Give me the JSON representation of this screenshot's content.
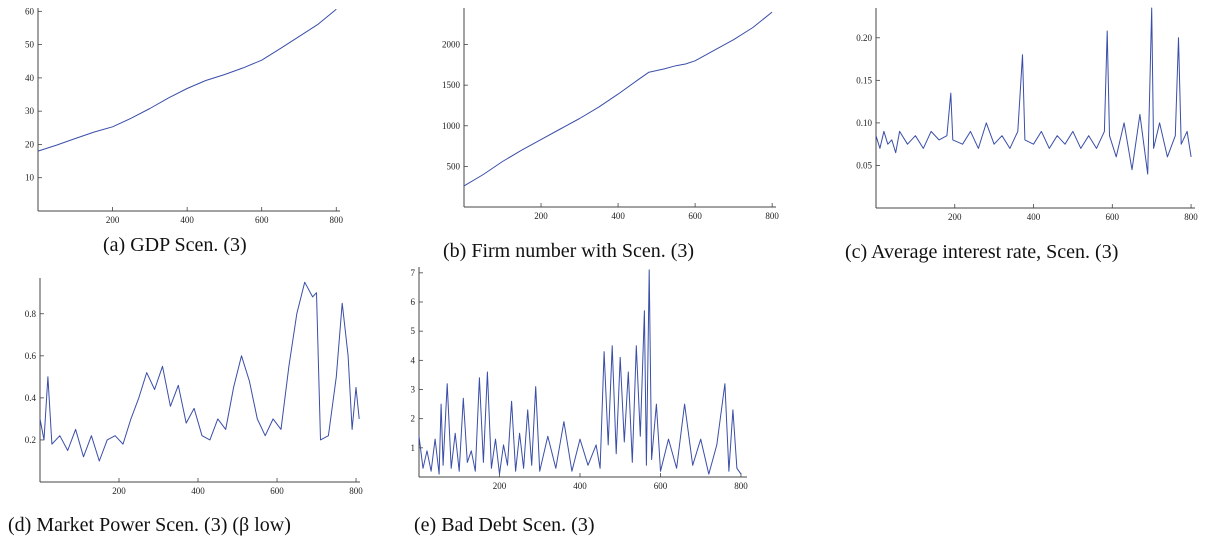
{
  "colors": {
    "line": "#3a4ea8",
    "axis": "#444444"
  },
  "chart_data": [
    {
      "id": "a",
      "type": "line",
      "caption": "(a) GDP Scen. (3)",
      "xlim": [
        0,
        810
      ],
      "ylim": [
        0,
        61
      ],
      "xticks": [
        200,
        400,
        600,
        800
      ],
      "yticks": [
        10,
        20,
        30,
        40,
        50,
        60
      ],
      "series": [
        {
          "values": [
            [
              0,
              18
            ],
            [
              50,
              19.8
            ],
            [
              100,
              21.8
            ],
            [
              150,
              23.7
            ],
            [
              200,
              25.3
            ],
            [
              250,
              27.9
            ],
            [
              300,
              30.8
            ],
            [
              350,
              34
            ],
            [
              400,
              36.8
            ],
            [
              450,
              39.2
            ],
            [
              500,
              41
            ],
            [
              550,
              43
            ],
            [
              600,
              45.3
            ],
            [
              650,
              48.8
            ],
            [
              700,
              52.4
            ],
            [
              750,
              56
            ],
            [
              800,
              60.6
            ]
          ]
        }
      ]
    },
    {
      "id": "b",
      "type": "line",
      "caption": "(b) Firm number with Scen. (3)",
      "xlim": [
        0,
        810
      ],
      "ylim": [
        0,
        2450
      ],
      "xticks": [
        200,
        400,
        600,
        800
      ],
      "yticks": [
        500,
        1000,
        1500,
        2000
      ],
      "series": [
        {
          "values": [
            [
              0,
              260
            ],
            [
              50,
              400
            ],
            [
              100,
              560
            ],
            [
              150,
              700
            ],
            [
              200,
              830
            ],
            [
              250,
              960
            ],
            [
              300,
              1090
            ],
            [
              350,
              1230
            ],
            [
              400,
              1390
            ],
            [
              450,
              1560
            ],
            [
              480,
              1660
            ],
            [
              520,
              1700
            ],
            [
              550,
              1740
            ],
            [
              575,
              1760
            ],
            [
              600,
              1800
            ],
            [
              650,
              1930
            ],
            [
              700,
              2060
            ],
            [
              750,
              2210
            ],
            [
              800,
              2400
            ]
          ]
        }
      ]
    },
    {
      "id": "c",
      "type": "line",
      "caption": "(c) Average interest rate, Scen. (3)",
      "xlim": [
        0,
        810
      ],
      "ylim": [
        0,
        0.235
      ],
      "xticks": [
        200,
        400,
        600,
        800
      ],
      "yticks": [
        0.05,
        0.1,
        0.15,
        0.2
      ],
      "ytick_labels": [
        "0.05",
        "0.10",
        "0.15",
        "0.20"
      ],
      "series": [
        {
          "values": [
            [
              0,
              0.085
            ],
            [
              10,
              0.07
            ],
            [
              20,
              0.09
            ],
            [
              30,
              0.075
            ],
            [
              40,
              0.08
            ],
            [
              50,
              0.065
            ],
            [
              60,
              0.09
            ],
            [
              80,
              0.075
            ],
            [
              100,
              0.085
            ],
            [
              120,
              0.07
            ],
            [
              140,
              0.09
            ],
            [
              160,
              0.08
            ],
            [
              180,
              0.085
            ],
            [
              190,
              0.135
            ],
            [
              195,
              0.08
            ],
            [
              220,
              0.075
            ],
            [
              240,
              0.09
            ],
            [
              260,
              0.07
            ],
            [
              280,
              0.1
            ],
            [
              300,
              0.075
            ],
            [
              320,
              0.085
            ],
            [
              340,
              0.07
            ],
            [
              360,
              0.09
            ],
            [
              372,
              0.18
            ],
            [
              378,
              0.08
            ],
            [
              400,
              0.075
            ],
            [
              420,
              0.09
            ],
            [
              440,
              0.07
            ],
            [
              460,
              0.085
            ],
            [
              480,
              0.075
            ],
            [
              500,
              0.09
            ],
            [
              520,
              0.07
            ],
            [
              540,
              0.085
            ],
            [
              560,
              0.07
            ],
            [
              580,
              0.09
            ],
            [
              587,
              0.208
            ],
            [
              593,
              0.085
            ],
            [
              610,
              0.06
            ],
            [
              630,
              0.1
            ],
            [
              650,
              0.045
            ],
            [
              670,
              0.11
            ],
            [
              690,
              0.04
            ],
            [
              700,
              0.235
            ],
            [
              705,
              0.07
            ],
            [
              720,
              0.1
            ],
            [
              740,
              0.06
            ],
            [
              760,
              0.085
            ],
            [
              768,
              0.2
            ],
            [
              775,
              0.075
            ],
            [
              790,
              0.09
            ],
            [
              800,
              0.06
            ]
          ]
        }
      ]
    },
    {
      "id": "d",
      "type": "line",
      "caption": "(d) Market Power Scen. (3) (β low)",
      "xlim": [
        0,
        810
      ],
      "ylim": [
        0,
        0.97
      ],
      "xticks": [
        200,
        400,
        600,
        800
      ],
      "yticks": [
        0.2,
        0.4,
        0.6,
        0.8
      ],
      "ytick_labels": [
        "0.2",
        "0.4",
        "0.6",
        "0.8"
      ],
      "series": [
        {
          "values": [
            [
              0,
              0.3
            ],
            [
              10,
              0.2
            ],
            [
              20,
              0.5
            ],
            [
              30,
              0.18
            ],
            [
              50,
              0.22
            ],
            [
              70,
              0.15
            ],
            [
              90,
              0.25
            ],
            [
              110,
              0.12
            ],
            [
              130,
              0.22
            ],
            [
              150,
              0.1
            ],
            [
              170,
              0.2
            ],
            [
              190,
              0.22
            ],
            [
              210,
              0.18
            ],
            [
              230,
              0.3
            ],
            [
              250,
              0.4
            ],
            [
              270,
              0.52
            ],
            [
              290,
              0.44
            ],
            [
              310,
              0.55
            ],
            [
              330,
              0.36
            ],
            [
              350,
              0.46
            ],
            [
              370,
              0.28
            ],
            [
              390,
              0.35
            ],
            [
              410,
              0.22
            ],
            [
              430,
              0.2
            ],
            [
              450,
              0.3
            ],
            [
              470,
              0.25
            ],
            [
              490,
              0.45
            ],
            [
              510,
              0.6
            ],
            [
              530,
              0.48
            ],
            [
              550,
              0.3
            ],
            [
              570,
              0.22
            ],
            [
              590,
              0.3
            ],
            [
              610,
              0.25
            ],
            [
              630,
              0.55
            ],
            [
              650,
              0.8
            ],
            [
              670,
              0.95
            ],
            [
              690,
              0.88
            ],
            [
              700,
              0.9
            ],
            [
              710,
              0.2
            ],
            [
              730,
              0.22
            ],
            [
              750,
              0.5
            ],
            [
              765,
              0.85
            ],
            [
              780,
              0.6
            ],
            [
              790,
              0.25
            ],
            [
              800,
              0.45
            ],
            [
              808,
              0.3
            ]
          ]
        }
      ]
    },
    {
      "id": "e",
      "type": "line",
      "caption": "(e) Bad Debt Scen. (3)",
      "xlim": [
        0,
        815
      ],
      "ylim": [
        0,
        7.2
      ],
      "xticks": [
        200,
        400,
        600,
        800
      ],
      "yticks": [
        1,
        2,
        3,
        4,
        5,
        6,
        7
      ],
      "series": [
        {
          "values": [
            [
              0,
              1.4
            ],
            [
              10,
              0.3
            ],
            [
              20,
              0.9
            ],
            [
              30,
              0.2
            ],
            [
              40,
              1.3
            ],
            [
              50,
              0.1
            ],
            [
              55,
              2.5
            ],
            [
              60,
              0.4
            ],
            [
              70,
              3.2
            ],
            [
              80,
              0.3
            ],
            [
              90,
              1.5
            ],
            [
              100,
              0.2
            ],
            [
              110,
              2.7
            ],
            [
              120,
              0.5
            ],
            [
              130,
              0.9
            ],
            [
              140,
              0.2
            ],
            [
              150,
              3.4
            ],
            [
              160,
              0.5
            ],
            [
              170,
              3.6
            ],
            [
              180,
              0.3
            ],
            [
              190,
              1.3
            ],
            [
              200,
              0.1
            ],
            [
              210,
              1.1
            ],
            [
              220,
              0.4
            ],
            [
              230,
              2.6
            ],
            [
              240,
              0.2
            ],
            [
              250,
              1.5
            ],
            [
              260,
              0.3
            ],
            [
              270,
              2.3
            ],
            [
              280,
              0.4
            ],
            [
              290,
              3.1
            ],
            [
              300,
              0.2
            ],
            [
              320,
              1.4
            ],
            [
              340,
              0.3
            ],
            [
              360,
              1.9
            ],
            [
              380,
              0.2
            ],
            [
              400,
              1.3
            ],
            [
              420,
              0.4
            ],
            [
              440,
              1.1
            ],
            [
              450,
              0.3
            ],
            [
              460,
              4.3
            ],
            [
              470,
              1.1
            ],
            [
              480,
              4.5
            ],
            [
              490,
              0.8
            ],
            [
              500,
              4.1
            ],
            [
              510,
              1.2
            ],
            [
              520,
              3.6
            ],
            [
              530,
              0.5
            ],
            [
              540,
              4.5
            ],
            [
              550,
              1.4
            ],
            [
              560,
              5.7
            ],
            [
              565,
              0.4
            ],
            [
              572,
              7.1
            ],
            [
              578,
              0.6
            ],
            [
              590,
              2.5
            ],
            [
              600,
              0.2
            ],
            [
              620,
              1.3
            ],
            [
              640,
              0.3
            ],
            [
              660,
              2.5
            ],
            [
              680,
              0.4
            ],
            [
              700,
              1.3
            ],
            [
              720,
              0.1
            ],
            [
              740,
              1.1
            ],
            [
              760,
              3.2
            ],
            [
              770,
              0.2
            ],
            [
              780,
              2.3
            ],
            [
              790,
              0.3
            ],
            [
              800,
              0.1
            ]
          ]
        }
      ]
    }
  ]
}
